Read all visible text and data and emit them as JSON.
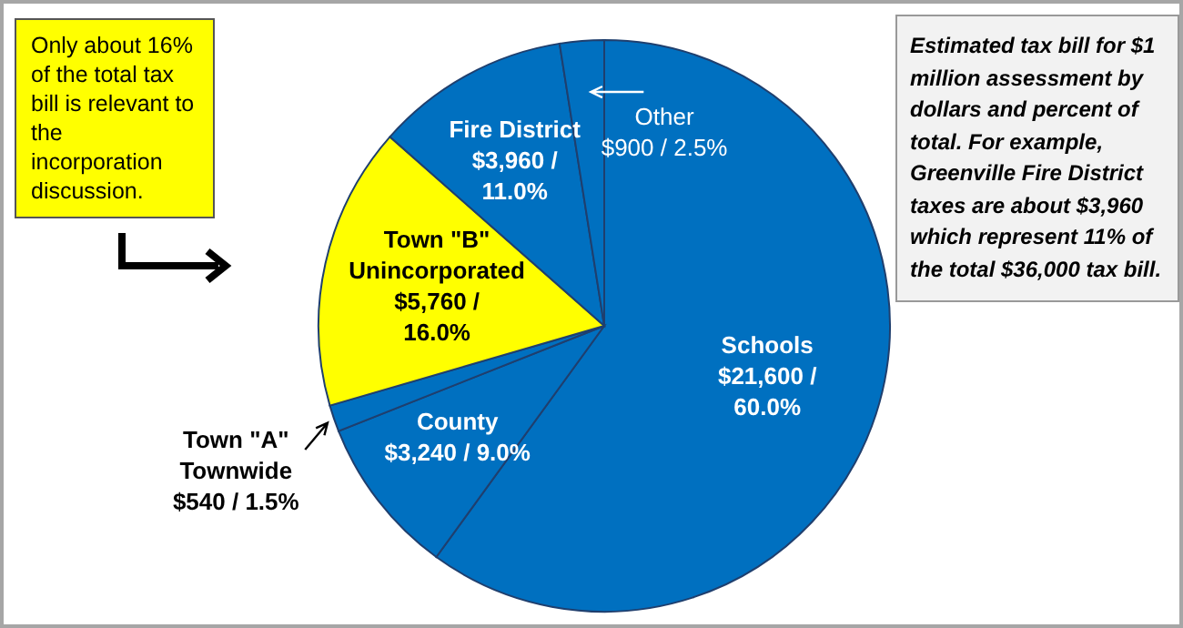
{
  "chart_data": {
    "type": "pie",
    "categories": [
      "Schools",
      "County",
      "Town \"A\" Townwide",
      "Town \"B\" Unincorporated",
      "Fire District",
      "Other"
    ],
    "values": [
      21600,
      3240,
      540,
      5760,
      3960,
      900
    ],
    "value_labels": [
      "$21,600 / 60.0%",
      "$3,240 / 9.0%",
      "$540 / 1.5%",
      "$5,760 / 16.0%",
      "$3,960 / 11.0%",
      "$900 / 2.5%"
    ],
    "colors": [
      "#0070c0",
      "#0070c0",
      "#0070c0",
      "#ffff00",
      "#0070c0",
      "#0070c0"
    ],
    "annotations": [
      "Only about 16% of the total tax bill is relevant to the incorporation discussion.",
      "Estimated tax bill for $1 million assessment by dollars and percent of total.  For example, Greenville Fire District taxes are about $3,960 which represent  11% of the total $36,000 tax bill."
    ]
  }
}
